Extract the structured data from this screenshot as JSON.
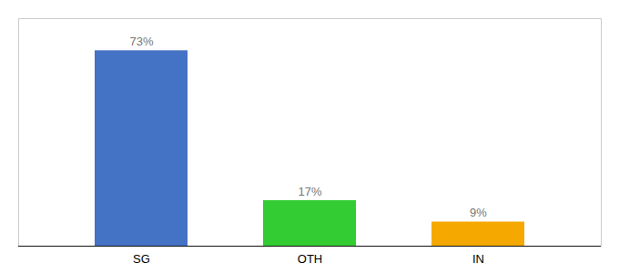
{
  "chart_data": {
    "type": "bar",
    "categories": [
      "SG",
      "OTH",
      "IN"
    ],
    "values": [
      73,
      17,
      9
    ],
    "value_labels": [
      "73%",
      "17%",
      "9%"
    ],
    "colors": [
      "#4472c4",
      "#33cc33",
      "#f5a800"
    ],
    "data_labels": true,
    "ylim": [
      0,
      85
    ],
    "tick_labels": "x",
    "grid": false
  }
}
